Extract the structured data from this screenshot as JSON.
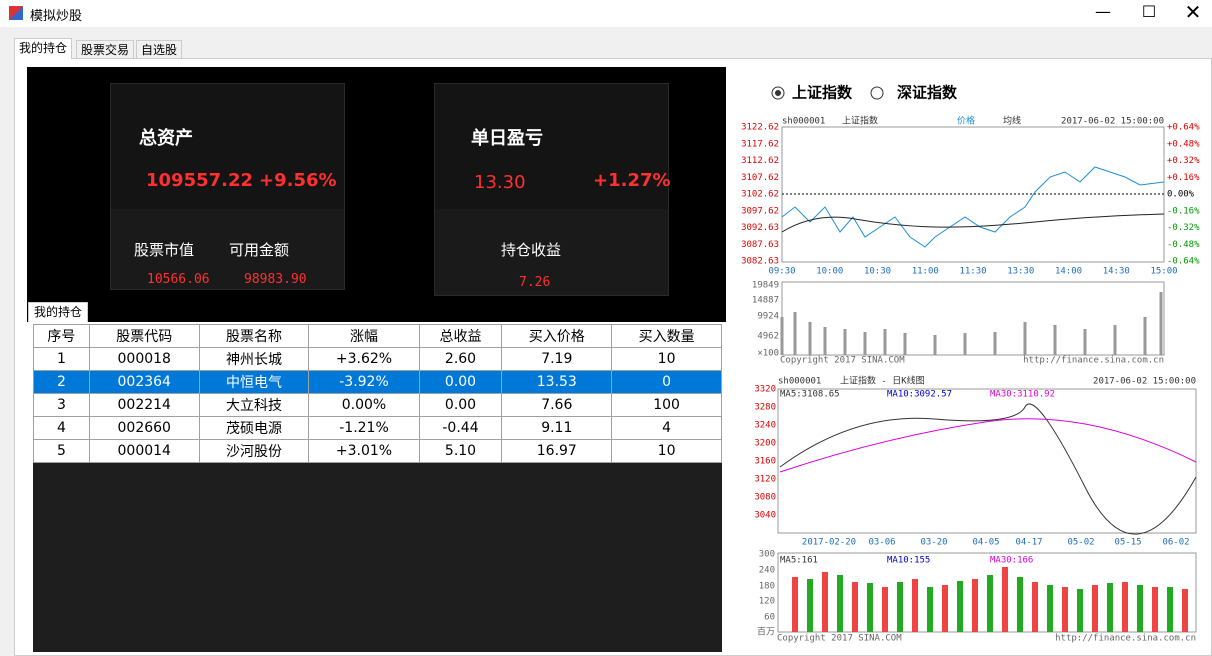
{
  "window": {
    "title": "模拟炒股"
  },
  "tabs": [
    "我的持仓",
    "股票交易",
    "自选股"
  ],
  "summary": {
    "total_assets": {
      "label": "总资产",
      "value": "109557.22",
      "change": "+9.56%"
    },
    "daily_pnl": {
      "label": "单日盈亏",
      "value": "13.30",
      "change": "+1.27%"
    },
    "market_value": {
      "label": "股票市值",
      "value": "10566.06"
    },
    "available": {
      "label": "可用金额",
      "value": "98983.90"
    },
    "holding_profit": {
      "label": "持仓收益",
      "value": "7.26"
    }
  },
  "holdings_tab": "我的持仓",
  "table": {
    "columns": [
      "序号",
      "股票代码",
      "股票名称",
      "涨幅",
      "总收益",
      "买入价格",
      "买入数量"
    ],
    "rows": [
      [
        "1",
        "000018",
        "神州长城",
        "+3.62%",
        "2.60",
        "7.19",
        "10"
      ],
      [
        "2",
        "002364",
        "中恒电气",
        "-3.92%",
        "0.00",
        "13.53",
        "0"
      ],
      [
        "3",
        "002214",
        "大立科技",
        "0.00%",
        "0.00",
        "7.66",
        "100"
      ],
      [
        "4",
        "002660",
        "茂硕电源",
        "-1.21%",
        "-0.44",
        "9.11",
        "4"
      ],
      [
        "5",
        "000014",
        "沙河股份",
        "+3.01%",
        "5.10",
        "16.97",
        "10"
      ]
    ]
  },
  "index_chart": {
    "options": [
      "上证指数",
      "深证指数"
    ],
    "intraday": {
      "code": "sh000001",
      "name": "上证指数",
      "legend": [
        "价格",
        "均线"
      ],
      "time": "2017-06-02 15:00:00",
      "left_labels": [
        "3122.62",
        "3117.62",
        "3112.62",
        "3107.62",
        "3102.62",
        "3097.62",
        "3092.63",
        "3087.63",
        "3082.63"
      ],
      "right_labels": [
        "+0.64%",
        "+0.48%",
        "+0.32%",
        "+0.16%",
        "0.00%",
        "-0.16%",
        "-0.32%",
        "-0.48%",
        "-0.64%"
      ],
      "x_labels": [
        "09:30",
        "10:00",
        "10:30",
        "11:00",
        "11:30",
        "13:30",
        "14:00",
        "14:30",
        "15:00"
      ],
      "volume_labels": [
        "19849",
        "14887",
        "9924",
        "4962",
        "×100"
      ],
      "copyright": "Copyright 2017 SINA.COM",
      "url": "http://finance.sina.com.cn"
    },
    "daily": {
      "code": "sh000001",
      "name": "上证指数 - 日K线图",
      "time": "2017-06-02 15:00:00",
      "ma": [
        "MA5:3108.65",
        "MA10:3092.57",
        "MA30:3110.92"
      ],
      "y_labels": [
        "3320",
        "3280",
        "3240",
        "3200",
        "3160",
        "3120",
        "3080",
        "3040"
      ],
      "x_labels": [
        "2017-02-20",
        "03-06",
        "03-20",
        "04-05",
        "04-17",
        "05-02",
        "05-15",
        "06-02"
      ],
      "volume_ma": [
        "MA5:161",
        "MA10:155",
        "MA30:166"
      ],
      "volume_labels": [
        "300",
        "240",
        "180",
        "120",
        "60",
        "百万"
      ],
      "copyright": "Copyright 2017 SINA.COM",
      "url": "http://finance.sina.com.cn"
    }
  }
}
